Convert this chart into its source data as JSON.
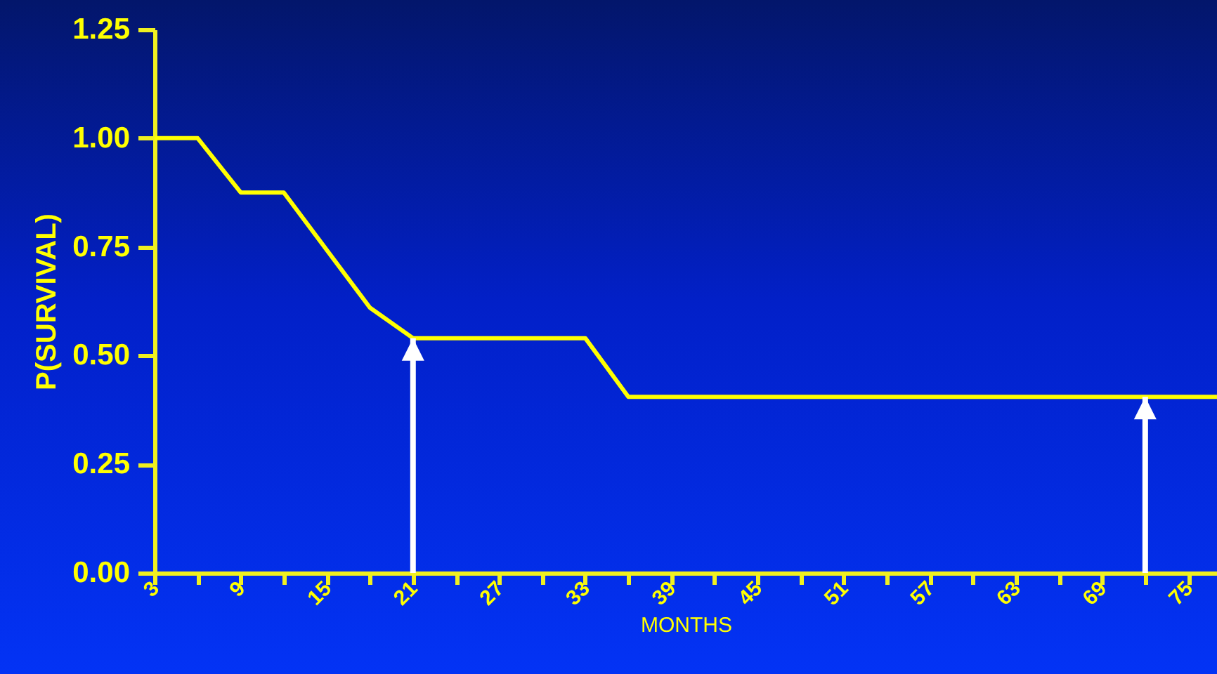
{
  "chart_data": {
    "type": "line",
    "xlabel": "MONTHS",
    "ylabel": "P(SURVIVAL)",
    "x": [
      3,
      6,
      9,
      12,
      18,
      21,
      33,
      36,
      77
    ],
    "series": [
      {
        "color": "#ffff00",
        "values": [
          1.0,
          1.0,
          0.875,
          0.875,
          0.61,
          0.54,
          0.54,
          0.405,
          0.405
        ]
      }
    ],
    "xlim": [
      3,
      77
    ],
    "xticks": [
      3,
      {
        "value": 6,
        "label": null
      },
      9,
      {
        "value": 12,
        "label": null
      },
      15,
      {
        "value": 18,
        "label": null
      },
      21,
      {
        "value": 24,
        "label": null
      },
      27,
      {
        "value": 30,
        "label": null
      },
      33,
      {
        "value": 36,
        "label": null
      },
      39,
      {
        "value": 42,
        "label": null
      },
      45,
      {
        "value": 48,
        "label": null
      },
      51,
      {
        "value": 54,
        "label": null
      },
      57,
      {
        "value": 60,
        "label": null
      },
      63,
      {
        "value": 66,
        "label": null
      },
      69,
      {
        "value": 72,
        "label": null
      },
      75
    ],
    "ylim": [
      0,
      1.25
    ],
    "yticks": [
      {
        "value": 0,
        "label": "0.00"
      },
      {
        "value": 0.25,
        "label": "0.25"
      },
      {
        "value": 0.5,
        "label": "0.50"
      },
      {
        "value": 0.75,
        "label": "0.75"
      },
      {
        "value": 1,
        "label": "1.00"
      },
      {
        "value": 1.25,
        "label": "1.25"
      }
    ],
    "ref_lines": [
      {
        "axis": "x",
        "value": 21,
        "color": "#ffffff"
      },
      {
        "axis": "x",
        "value": 72,
        "color": "#ffffff"
      }
    ],
    "grid": false,
    "legend": false,
    "marker": "none",
    "line_style": "solid"
  }
}
